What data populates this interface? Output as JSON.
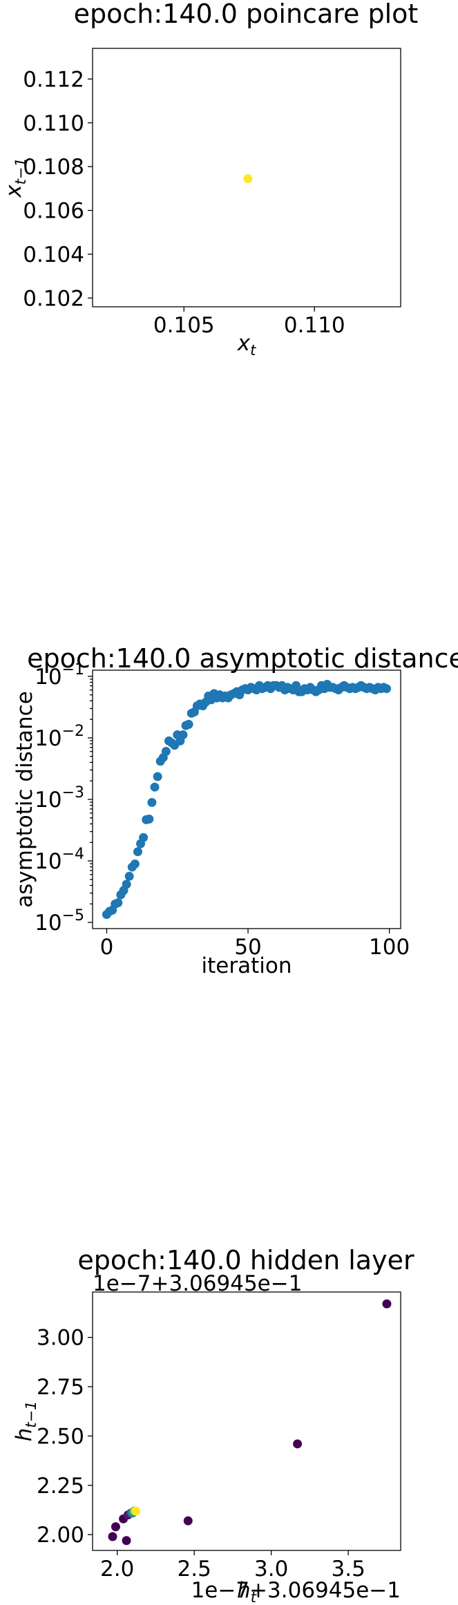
{
  "chart_data": [
    {
      "type": "scatter",
      "title": "epoch:140.0 poincare plot",
      "xlabel": "x",
      "xlabel_sub": "t",
      "ylabel": "x",
      "ylabel_sub": "t−1",
      "xlim": [
        0.1015,
        0.1133
      ],
      "ylim": [
        0.1016,
        0.1134
      ],
      "xticks": [
        0.105,
        0.11
      ],
      "xtick_labels": [
        "0.105",
        "0.110"
      ],
      "yticks": [
        0.102,
        0.104,
        0.106,
        0.108,
        0.11,
        0.112
      ],
      "ytick_labels": [
        "0.102",
        "0.104",
        "0.106",
        "0.108",
        "0.110",
        "0.112"
      ],
      "points": [
        {
          "x": 0.10745,
          "y": 0.10745,
          "color": "#fde725"
        }
      ]
    },
    {
      "type": "scatter",
      "yscale": "log",
      "title": "epoch:140.0 asymptotic distance",
      "xlabel": "iteration",
      "ylabel": "asymptotic distance",
      "xlim": [
        -5,
        104
      ],
      "ylim_exp": [
        -5.1,
        -0.9
      ],
      "xticks": [
        0,
        50,
        100
      ],
      "xtick_labels": [
        "0",
        "50",
        "100"
      ],
      "yticks_exp": [
        -5,
        -4,
        -3,
        -2,
        -1
      ],
      "ytick_mantissa": "10",
      "ytick_exponents": [
        "−5",
        "−4",
        "−3",
        "−2",
        "−1"
      ],
      "color": "#1f77b4",
      "x": [
        0,
        1,
        2,
        3,
        4,
        5,
        6,
        7,
        8,
        9,
        10,
        11,
        12,
        13,
        14,
        15,
        16,
        17,
        18,
        19,
        20,
        21,
        22,
        23,
        24,
        25,
        26,
        27,
        28,
        29,
        30,
        31,
        32,
        33,
        34,
        35,
        36,
        37,
        38,
        39,
        40,
        41,
        42,
        43,
        44,
        45,
        46,
        47,
        48,
        49,
        50,
        51,
        52,
        53,
        54,
        55,
        56,
        57,
        58,
        59,
        60,
        61,
        62,
        63,
        64,
        65,
        66,
        67,
        67,
        68,
        69,
        70,
        71,
        72,
        73,
        74,
        75,
        76,
        77,
        78,
        79,
        80,
        81,
        82,
        83,
        84,
        85,
        86,
        87,
        88,
        89,
        90,
        91,
        92,
        93,
        94,
        95,
        96,
        97,
        98,
        99
      ],
      "y_log10": [
        -4.87,
        -4.82,
        -4.8,
        -4.7,
        -4.68,
        -4.55,
        -4.48,
        -4.38,
        -4.25,
        -4.1,
        -4.05,
        -3.85,
        -3.72,
        -3.62,
        -3.33,
        -3.32,
        -3.05,
        -2.8,
        -2.63,
        -2.38,
        -2.32,
        -2.22,
        -2.05,
        -2.08,
        -2.12,
        -1.95,
        -2.05,
        -1.95,
        -1.8,
        -1.78,
        -1.6,
        -1.58,
        -1.48,
        -1.45,
        -1.48,
        -1.42,
        -1.32,
        -1.38,
        -1.28,
        -1.35,
        -1.3,
        -1.35,
        -1.32,
        -1.35,
        -1.3,
        -1.28,
        -1.25,
        -1.3,
        -1.22,
        -1.2,
        -1.22,
        -1.18,
        -1.2,
        -1.22,
        -1.15,
        -1.2,
        -1.18,
        -1.15,
        -1.2,
        -1.15,
        -1.15,
        -1.18,
        -1.15,
        -1.22,
        -1.18,
        -1.2,
        -1.22,
        -1.15,
        -1.18,
        -1.25,
        -1.25,
        -1.2,
        -1.22,
        -1.18,
        -1.22,
        -1.25,
        -1.22,
        -1.15,
        -1.2,
        -1.13,
        -1.18,
        -1.18,
        -1.2,
        -1.22,
        -1.18,
        -1.15,
        -1.18,
        -1.2,
        -1.18,
        -1.2,
        -1.18,
        -1.15,
        -1.18,
        -1.2,
        -1.18,
        -1.2,
        -1.22,
        -1.18,
        -1.2,
        -1.18,
        -1.2
      ]
    },
    {
      "type": "scatter",
      "title": "epoch:140.0 hidden layer",
      "xlabel": "h",
      "xlabel_sub": "t",
      "ylabel": "h",
      "ylabel_sub": "t−1",
      "x_offset_text": "1e−7+3.06945e−1",
      "y_offset_text": "1e−7+3.06945e−1",
      "xlim": [
        1.84,
        3.84
      ],
      "ylim": [
        1.92,
        3.23
      ],
      "xticks": [
        2.0,
        2.5,
        3.0,
        3.5
      ],
      "xtick_labels": [
        "2.0",
        "2.5",
        "3.0",
        "3.5"
      ],
      "yticks": [
        2.0,
        2.25,
        2.5,
        2.75,
        3.0
      ],
      "ytick_labels": [
        "2.00",
        "2.25",
        "2.50",
        "2.75",
        "3.00"
      ],
      "points": [
        {
          "x": 3.75,
          "y": 3.17,
          "color": "#440154"
        },
        {
          "x": 3.17,
          "y": 2.46,
          "color": "#440154"
        },
        {
          "x": 2.46,
          "y": 2.07,
          "color": "#440154"
        },
        {
          "x": 1.97,
          "y": 1.99,
          "color": "#440154"
        },
        {
          "x": 1.99,
          "y": 2.04,
          "color": "#440154"
        },
        {
          "x": 2.04,
          "y": 2.08,
          "color": "#440154"
        },
        {
          "x": 2.06,
          "y": 1.97,
          "color": "#440154"
        },
        {
          "x": 2.07,
          "y": 2.1,
          "color": "#481a6c"
        },
        {
          "x": 2.09,
          "y": 2.11,
          "color": "#3b528b"
        },
        {
          "x": 2.1,
          "y": 2.11,
          "color": "#21918c"
        },
        {
          "x": 2.11,
          "y": 2.12,
          "color": "#5ec962"
        },
        {
          "x": 2.12,
          "y": 2.12,
          "color": "#fde725"
        }
      ]
    }
  ]
}
